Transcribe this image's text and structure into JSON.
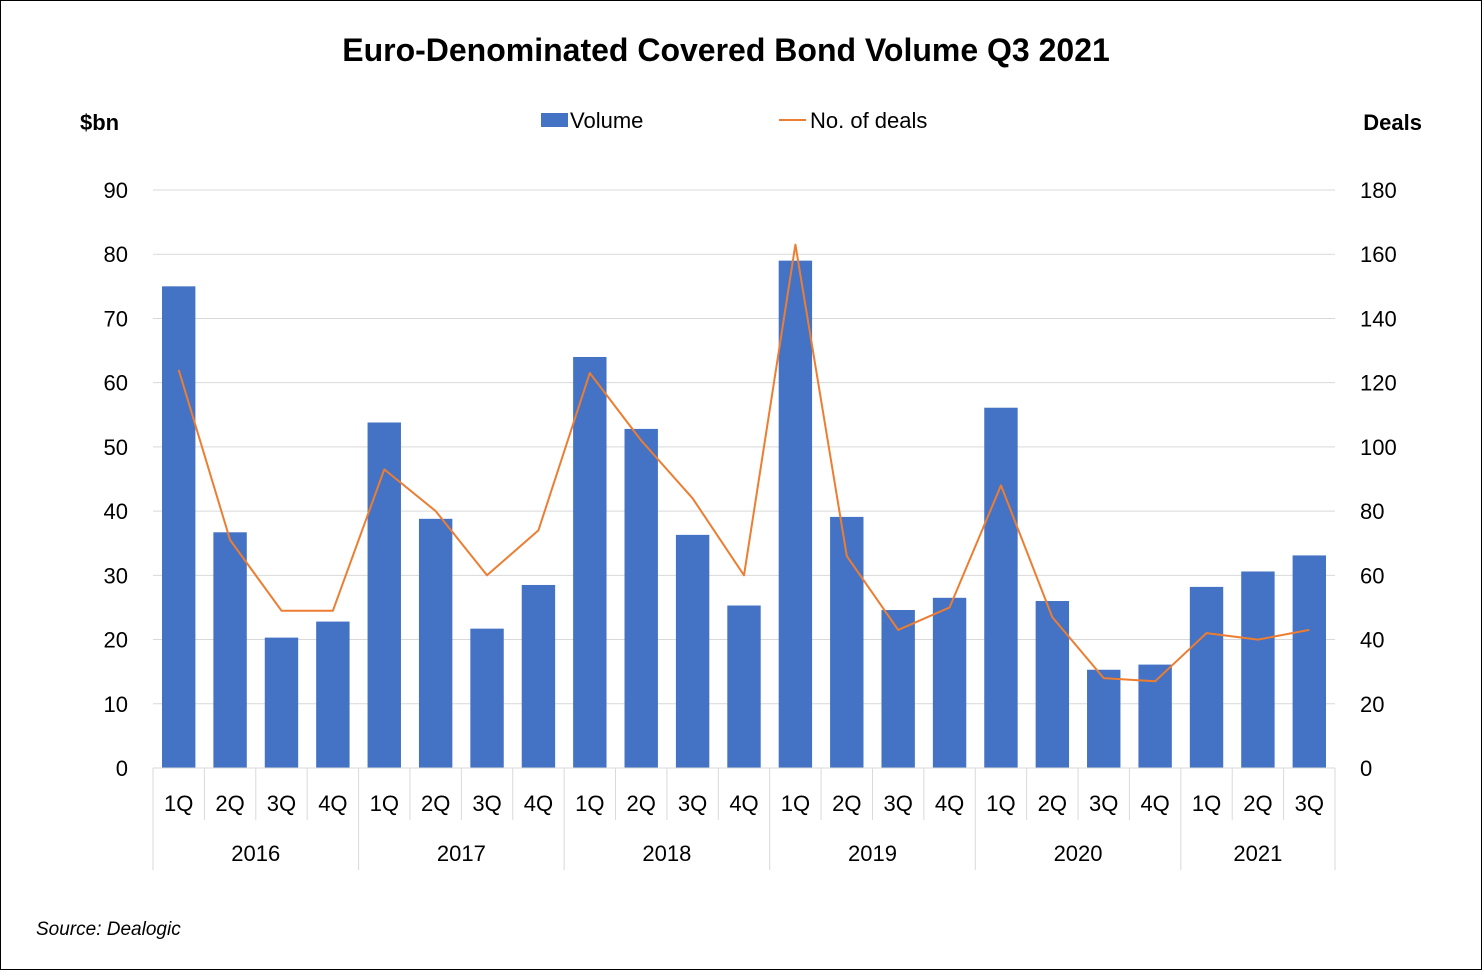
{
  "chart_data": {
    "type": "bar",
    "title": "Euro-Denominated Covered Bond Volume Q3 2021",
    "ylabel_left": "$bn",
    "ylabel_right": "Deals",
    "ylim_left": [
      0,
      90
    ],
    "ylim_right": [
      0,
      180
    ],
    "yticks_left": [
      0,
      10,
      20,
      30,
      40,
      50,
      60,
      70,
      80,
      90
    ],
    "yticks_right": [
      0,
      20,
      40,
      60,
      80,
      100,
      120,
      140,
      160,
      180
    ],
    "grid": true,
    "legend_position": "top-center",
    "categories": [
      "1Q",
      "2Q",
      "3Q",
      "4Q",
      "1Q",
      "2Q",
      "3Q",
      "4Q",
      "1Q",
      "2Q",
      "3Q",
      "4Q",
      "1Q",
      "2Q",
      "3Q",
      "4Q",
      "1Q",
      "2Q",
      "3Q",
      "4Q",
      "1Q",
      "2Q",
      "3Q"
    ],
    "groups": [
      {
        "label": "2016",
        "count": 4
      },
      {
        "label": "2017",
        "count": 4
      },
      {
        "label": "2018",
        "count": 4
      },
      {
        "label": "2019",
        "count": 4
      },
      {
        "label": "2020",
        "count": 4
      },
      {
        "label": "2021",
        "count": 3
      }
    ],
    "series": [
      {
        "name": "Volume",
        "type": "bar",
        "axis": "left",
        "color": "#4472C4",
        "values": [
          75,
          36.7,
          20.3,
          22.8,
          53.8,
          38.8,
          21.7,
          28.5,
          64,
          52.8,
          36.3,
          25.3,
          79,
          39.1,
          24.6,
          26.5,
          56.1,
          26,
          15.3,
          16.1,
          28.2,
          30.6,
          33.1
        ]
      },
      {
        "name": "No. of deals",
        "type": "line",
        "axis": "right",
        "color": "#ED7D31",
        "values": [
          124,
          71,
          49,
          49,
          93,
          80,
          60,
          74,
          123,
          102,
          84,
          60,
          163,
          66,
          43,
          50,
          88,
          47,
          28,
          27,
          42,
          40,
          43
        ]
      }
    ]
  },
  "source": "Source: Dealogic"
}
